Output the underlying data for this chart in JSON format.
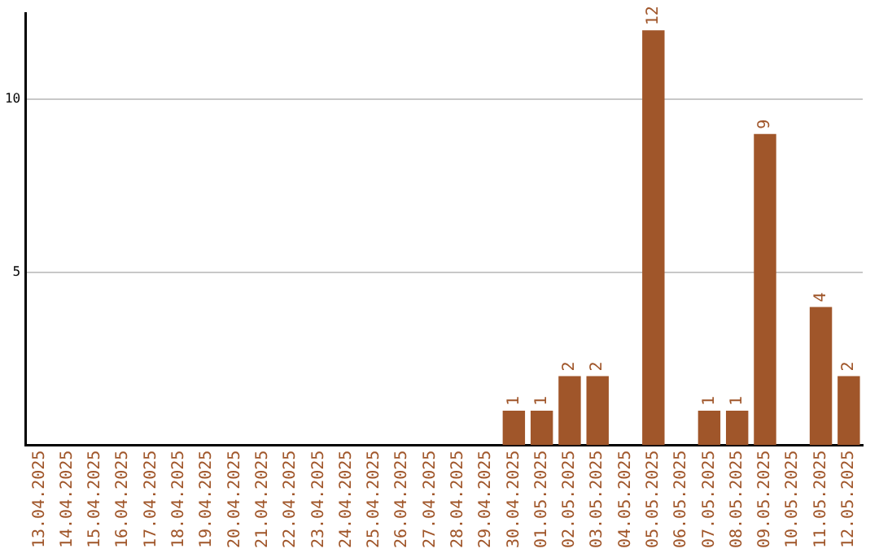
{
  "chart_data": {
    "type": "bar",
    "categories": [
      "13.04.2025",
      "14.04.2025",
      "15.04.2025",
      "16.04.2025",
      "17.04.2025",
      "18.04.2025",
      "19.04.2025",
      "20.04.2025",
      "21.04.2025",
      "22.04.2025",
      "23.04.2025",
      "24.04.2025",
      "25.04.2025",
      "26.04.2025",
      "27.04.2025",
      "28.04.2025",
      "29.04.2025",
      "30.04.2025",
      "01.05.2025",
      "02.05.2025",
      "03.05.2025",
      "04.05.2025",
      "05.05.2025",
      "06.05.2025",
      "07.05.2025",
      "08.05.2025",
      "09.05.2025",
      "10.05.2025",
      "11.05.2025",
      "12.05.2025"
    ],
    "values": [
      0,
      0,
      0,
      0,
      0,
      0,
      0,
      0,
      0,
      0,
      0,
      0,
      0,
      0,
      0,
      0,
      0,
      1,
      1,
      2,
      2,
      0,
      12,
      0,
      1,
      1,
      9,
      0,
      4,
      2
    ],
    "value_labels": [
      null,
      null,
      null,
      null,
      null,
      null,
      null,
      null,
      null,
      null,
      null,
      null,
      null,
      null,
      null,
      null,
      null,
      "1",
      "1",
      "2",
      "2",
      null,
      "12",
      null,
      "1",
      "1",
      "9",
      null,
      "4",
      "2"
    ],
    "color": "#a0562a",
    "ylim": [
      0,
      12.5
    ],
    "yticks": [
      5,
      10
    ],
    "grid": "y",
    "legend": false
  }
}
